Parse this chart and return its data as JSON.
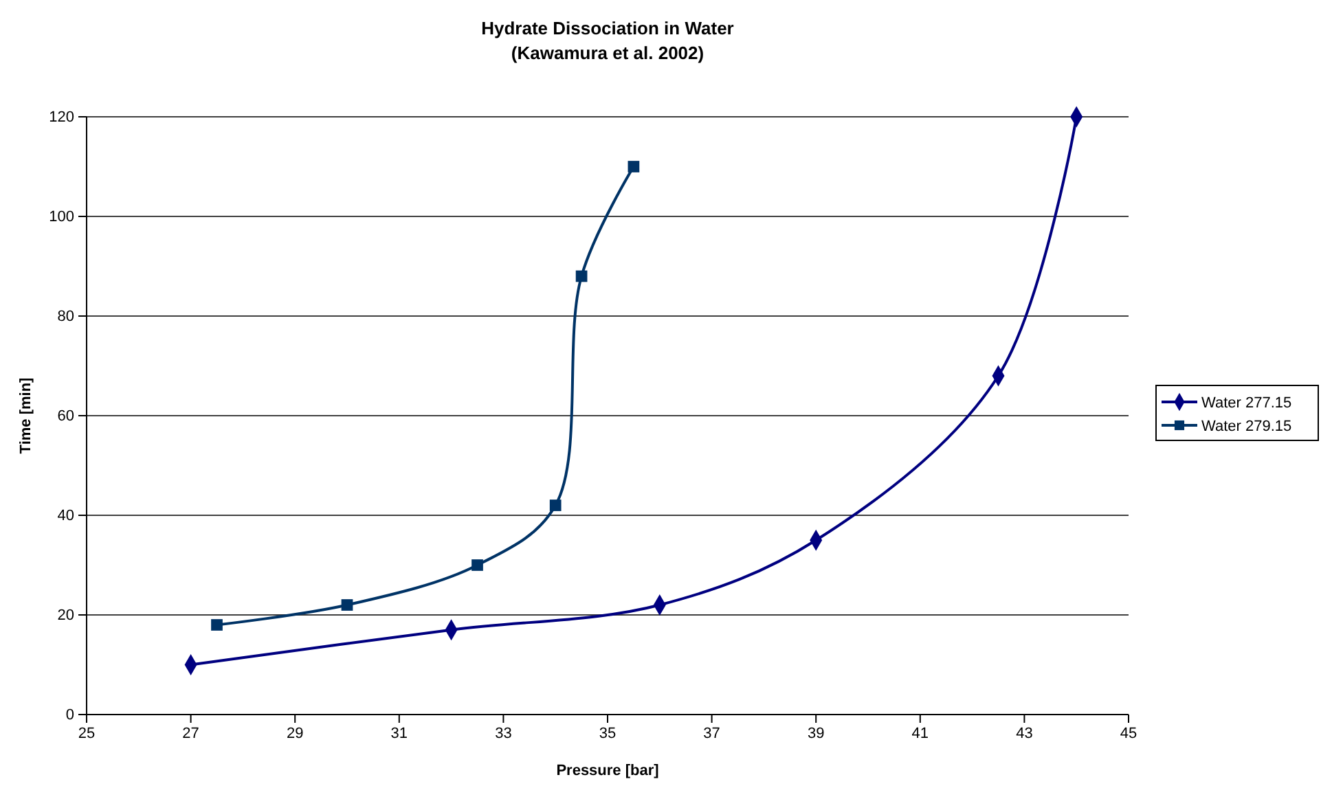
{
  "chart_data": {
    "type": "line",
    "title": "Hydrate Dissociation in Water",
    "subtitle": "(Kawamura et al. 2002)",
    "xlabel": "Pressure [bar]",
    "ylabel": "Time [min]",
    "xlim": [
      25,
      45
    ],
    "xticks": [
      25,
      27,
      29,
      31,
      33,
      35,
      37,
      39,
      41,
      43,
      45
    ],
    "ylim": [
      0,
      120
    ],
    "yticks": [
      0,
      20,
      40,
      60,
      80,
      100,
      120
    ],
    "grid": "y",
    "legend": "right",
    "line_style": "solid",
    "series": [
      {
        "name": "Water 277.15",
        "color": "#000080",
        "marker": "diamond",
        "x": [
          27,
          32,
          36,
          39,
          42.5,
          44
        ],
        "values": [
          10,
          17,
          22,
          35,
          68,
          120
        ]
      },
      {
        "name": "Water 279.15",
        "color": "#003366",
        "marker": "square",
        "x": [
          27.5,
          30,
          32.5,
          34,
          34.5,
          35.5
        ],
        "values": [
          18,
          22,
          30,
          42,
          88,
          110
        ]
      }
    ]
  }
}
